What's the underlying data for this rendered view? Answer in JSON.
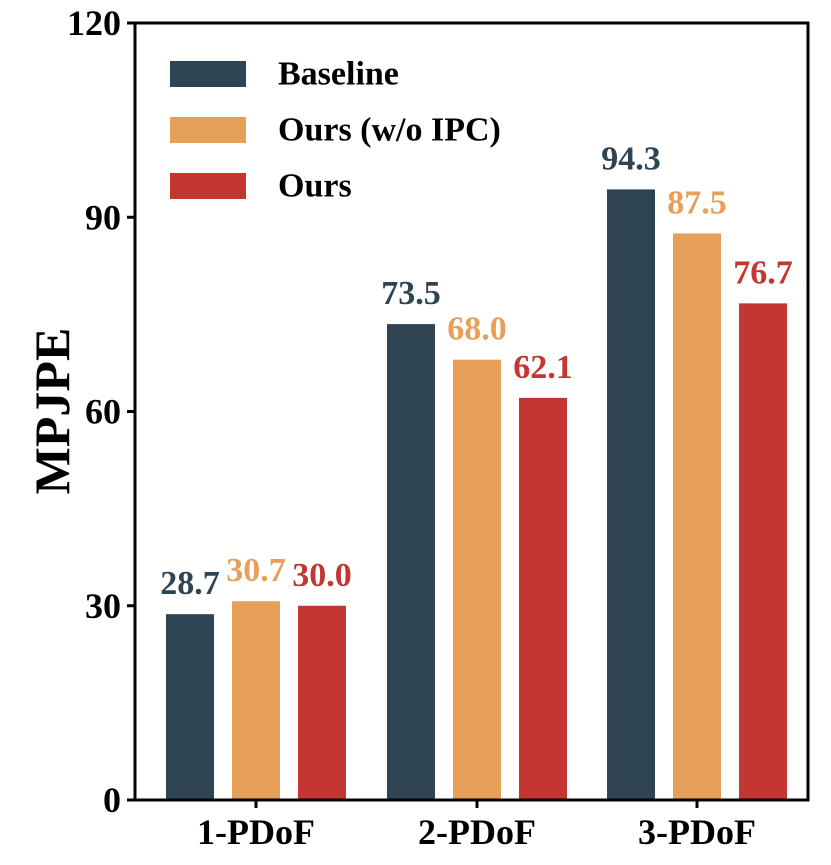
{
  "chart_data": {
    "type": "bar",
    "title": "",
    "xlabel": "",
    "ylabel": "MPJPE",
    "ylim": [
      0,
      120
    ],
    "yticks": [
      0,
      30,
      60,
      90,
      120
    ],
    "grid": false,
    "legend_position": "top-left",
    "categories": [
      "1-PDoF",
      "2-PDoF",
      "3-PDoF"
    ],
    "series": [
      {
        "name": "Baseline",
        "color": "#2e4453",
        "values": [
          28.7,
          73.5,
          94.3
        ],
        "labels": [
          "28.7",
          "73.5",
          "94.3"
        ]
      },
      {
        "name": "Ours (w/o IPC)",
        "color": "#e6a05a",
        "values": [
          30.7,
          68.0,
          87.5
        ],
        "labels": [
          "30.7",
          "68.0",
          "87.5"
        ]
      },
      {
        "name": "Ours",
        "color": "#c33632",
        "values": [
          30.0,
          62.1,
          76.7
        ],
        "labels": [
          "30.0",
          "62.1",
          "76.7"
        ]
      }
    ]
  }
}
